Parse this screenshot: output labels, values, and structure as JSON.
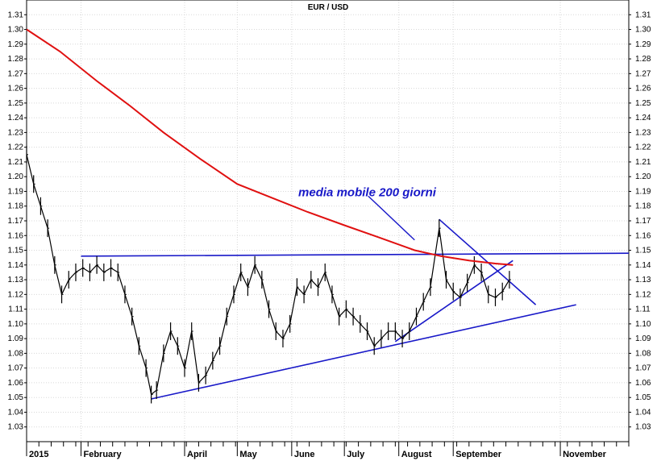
{
  "chart_data": {
    "type": "line",
    "title": "EUR / USD",
    "xlabel": "",
    "ylabel": "",
    "ylim": [
      1.02,
      1.32
    ],
    "yticks": [
      1.03,
      1.04,
      1.05,
      1.06,
      1.07,
      1.08,
      1.09,
      1.1,
      1.11,
      1.12,
      1.13,
      1.14,
      1.15,
      1.16,
      1.17,
      1.18,
      1.19,
      1.2,
      1.21,
      1.22,
      1.23,
      1.24,
      1.25,
      1.26,
      1.27,
      1.28,
      1.29,
      1.3,
      1.31
    ],
    "ytick_labels": [
      "1.03",
      "1.04",
      "1.05",
      "1.06",
      "1.07",
      "1.08",
      "1.09",
      "1.10",
      "1.11",
      "1.12",
      "1.13",
      "1.14",
      "1.15",
      "1.16",
      "1.17",
      "1.18",
      "1.19",
      "1.20",
      "1.21",
      "1.22",
      "1.23",
      "1.24",
      "1.25",
      "1.26",
      "1.27",
      "1.28",
      "1.29",
      "1.30",
      "1.31"
    ],
    "xlim": [
      "2015-01-01",
      "2015-12-10"
    ],
    "month_labels": [
      {
        "label": "2015",
        "date": "2015-01-01"
      },
      {
        "label": "February",
        "date": "2015-02-01"
      },
      {
        "label": "April",
        "date": "2015-04-01"
      },
      {
        "label": "May",
        "date": "2015-05-01"
      },
      {
        "label": "June",
        "date": "2015-06-01"
      },
      {
        "label": "July",
        "date": "2015-07-01"
      },
      {
        "label": "August",
        "date": "2015-08-01"
      },
      {
        "label": "September",
        "date": "2015-09-01"
      },
      {
        "label": "November",
        "date": "2015-11-01"
      }
    ],
    "grid": true,
    "series": [
      {
        "color": "#000000",
        "style": "price",
        "x": [
          "2015-01-01",
          "2015-01-05",
          "2015-01-09",
          "2015-01-13",
          "2015-01-17",
          "2015-01-21",
          "2015-01-25",
          "2015-01-29",
          "2015-02-02",
          "2015-02-06",
          "2015-02-10",
          "2015-02-14",
          "2015-02-18",
          "2015-02-22",
          "2015-02-26",
          "2015-03-02",
          "2015-03-06",
          "2015-03-10",
          "2015-03-13",
          "2015-03-16",
          "2015-03-20",
          "2015-03-24",
          "2015-03-28",
          "2015-04-01",
          "2015-04-05",
          "2015-04-09",
          "2015-04-13",
          "2015-04-17",
          "2015-04-21",
          "2015-04-25",
          "2015-04-29",
          "2015-05-03",
          "2015-05-07",
          "2015-05-11",
          "2015-05-15",
          "2015-05-19",
          "2015-05-23",
          "2015-05-27",
          "2015-05-31",
          "2015-06-04",
          "2015-06-08",
          "2015-06-12",
          "2015-06-16",
          "2015-06-20",
          "2015-06-24",
          "2015-06-28",
          "2015-07-02",
          "2015-07-06",
          "2015-07-10",
          "2015-07-14",
          "2015-07-18",
          "2015-07-22",
          "2015-07-26",
          "2015-07-30",
          "2015-08-03",
          "2015-08-07",
          "2015-08-11",
          "2015-08-15",
          "2015-08-19",
          "2015-08-24",
          "2015-08-28",
          "2015-09-01",
          "2015-09-05",
          "2015-09-09",
          "2015-09-13",
          "2015-09-17",
          "2015-09-21",
          "2015-09-25",
          "2015-09-29",
          "2015-10-03"
        ],
        "values": [
          1.215,
          1.195,
          1.18,
          1.165,
          1.14,
          1.12,
          1.13,
          1.135,
          1.138,
          1.135,
          1.14,
          1.135,
          1.138,
          1.135,
          1.12,
          1.105,
          1.085,
          1.07,
          1.052,
          1.055,
          1.08,
          1.095,
          1.085,
          1.07,
          1.095,
          1.06,
          1.065,
          1.075,
          1.085,
          1.105,
          1.12,
          1.135,
          1.125,
          1.14,
          1.13,
          1.11,
          1.095,
          1.09,
          1.1,
          1.125,
          1.12,
          1.13,
          1.125,
          1.135,
          1.12,
          1.105,
          1.11,
          1.105,
          1.1,
          1.095,
          1.085,
          1.09,
          1.095,
          1.095,
          1.09,
          1.095,
          1.105,
          1.115,
          1.125,
          1.165,
          1.13,
          1.122,
          1.118,
          1.128,
          1.14,
          1.135,
          1.12,
          1.118,
          1.122,
          1.13
        ]
      },
      {
        "name": "media mobile 200 giorni",
        "color": "#e01010",
        "style": "line",
        "x": [
          "2015-01-01",
          "2015-01-20",
          "2015-02-10",
          "2015-03-01",
          "2015-03-20",
          "2015-04-10",
          "2015-05-01",
          "2015-05-20",
          "2015-06-10",
          "2015-07-01",
          "2015-07-20",
          "2015-08-10",
          "2015-08-25",
          "2015-09-10",
          "2015-09-25",
          "2015-10-05"
        ],
        "values": [
          1.3,
          1.285,
          1.265,
          1.248,
          1.23,
          1.212,
          1.195,
          1.186,
          1.176,
          1.167,
          1.159,
          1.15,
          1.146,
          1.143,
          1.141,
          1.14
        ]
      }
    ],
    "trendlines": [
      {
        "from": [
          "2015-02-01",
          1.146
        ],
        "to": [
          "2015-12-10",
          1.148
        ],
        "color": "#1818c8"
      },
      {
        "from": [
          "2015-03-13",
          1.049
        ],
        "to": [
          "2015-11-10",
          1.113
        ],
        "color": "#1818c8"
      },
      {
        "from": [
          "2015-07-30",
          1.088
        ],
        "to": [
          "2015-10-05",
          1.143
        ],
        "color": "#1818c8"
      },
      {
        "from": [
          "2015-08-24",
          1.171
        ],
        "to": [
          "2015-10-18",
          1.113
        ],
        "color": "#1818c8"
      }
    ],
    "annotations": [
      {
        "text": "media mobile 200 giorni",
        "color": "#1818c8",
        "at": [
          "2015-07-14",
          1.18
        ],
        "arrow_from": [
          "2015-08-01",
          1.177
        ],
        "arrow_to": [
          "2015-08-10",
          1.157
        ]
      }
    ]
  }
}
